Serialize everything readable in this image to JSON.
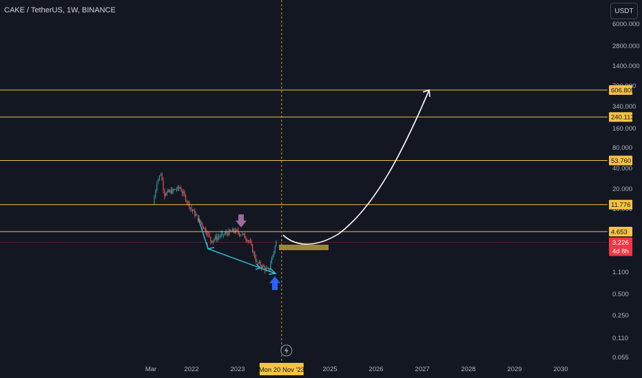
{
  "header": {
    "symbol_title": "CAKE / TetherUS, 1W, BINANCE",
    "currency": "USDT"
  },
  "colors": {
    "background": "#131722",
    "level_line": "#f5c242",
    "level_label": "#f5c242",
    "current_price": "#f23645",
    "candle_up": "#26a69a",
    "candle_down": "#ef5350",
    "trend_arrow": "#2fb8d6",
    "bullish_arrow": "#2962ff",
    "bearish_arrow": "#9c6b9c",
    "projection_curve": "#ffffff",
    "target_zone": "#b8963e",
    "cursor_line": "#c9a23b"
  },
  "icons": {
    "replay": "lightning-icon",
    "bearish_marker": "arrow-down-icon",
    "bullish_marker": "arrow-up-icon"
  },
  "chart_data": {
    "type": "candlestick",
    "scale": "log",
    "price_axis_ticks": [
      "6000.000",
      "2800.000",
      "1400.000",
      "700.000",
      "340.000",
      "160.000",
      "80.000",
      "40.000",
      "20.000",
      "10.000",
      "1.100",
      "0.500",
      "0.250",
      "0.110",
      "0.055"
    ],
    "time_axis_ticks": [
      "Mar",
      "2022",
      "2023",
      "2025",
      "2026",
      "2027",
      "2028",
      "2029",
      "2030"
    ],
    "cursor_date_label": "Mon 20 Nov '23",
    "horizontal_levels": [
      {
        "price": 606.805,
        "label": "606.805"
      },
      {
        "price": 240.113,
        "label": "240.113"
      },
      {
        "price": 53.76,
        "label": "53.760"
      },
      {
        "price": 11.776,
        "label": "11.776"
      },
      {
        "price": 4.653,
        "label": "4.653"
      }
    ],
    "current_price": {
      "value": 3.226,
      "label": "3.226",
      "countdown": "4d 8h"
    },
    "price_series_weekly_approx": [
      {
        "date": "2021-03",
        "price": 12
      },
      {
        "date": "2021-04",
        "price": 26
      },
      {
        "date": "2021-05",
        "price": 34
      },
      {
        "date": "2021-06",
        "price": 17
      },
      {
        "date": "2021-08",
        "price": 19
      },
      {
        "date": "2021-10",
        "price": 21
      },
      {
        "date": "2022-01",
        "price": 10
      },
      {
        "date": "2022-03",
        "price": 7
      },
      {
        "date": "2022-05",
        "price": 4.5
      },
      {
        "date": "2022-06",
        "price": 3.4
      },
      {
        "date": "2022-09",
        "price": 4.2
      },
      {
        "date": "2022-12",
        "price": 4.8
      },
      {
        "date": "2023-02",
        "price": 4.3
      },
      {
        "date": "2023-04",
        "price": 3.4
      },
      {
        "date": "2023-06",
        "price": 1.6
      },
      {
        "date": "2023-09",
        "price": 1.2
      },
      {
        "date": "2023-11",
        "price": 3.2
      }
    ],
    "projection_target": 606.805,
    "projection_end_year": 2027
  }
}
